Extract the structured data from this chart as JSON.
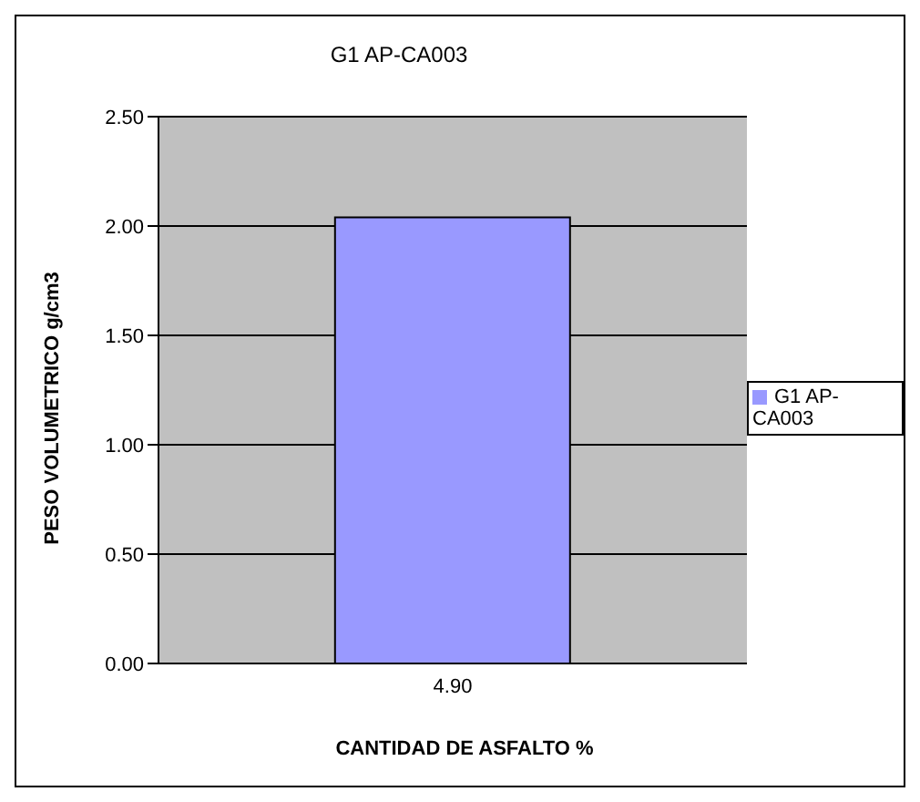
{
  "chart_data": {
    "type": "bar",
    "title": "G1 AP-CA003",
    "xlabel": "CANTIDAD DE ASFALTO %",
    "ylabel": "PESO VOLUMETRICO g/cm3",
    "categories": [
      "4.90"
    ],
    "series": [
      {
        "name": "G1 AP-CA003",
        "color": "#9999ff",
        "values": [
          2.04
        ]
      }
    ],
    "ylim": [
      0,
      2.5
    ],
    "yticks": [
      {
        "value": 0,
        "label": "0.00"
      },
      {
        "value": 0.5,
        "label": "0.50"
      },
      {
        "value": 1,
        "label": "1.00"
      },
      {
        "value": 1.5,
        "label": "1.50"
      },
      {
        "value": 2,
        "label": "2.00"
      },
      {
        "value": 2.5,
        "label": "2.50"
      }
    ],
    "grid": "y",
    "legend": "right"
  }
}
